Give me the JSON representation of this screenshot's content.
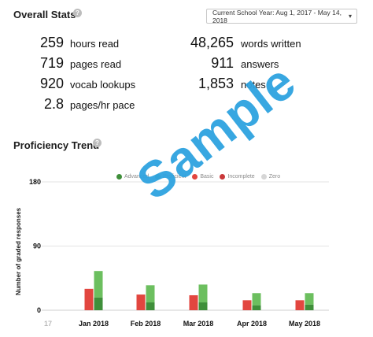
{
  "overall": {
    "title": "Overall Stats",
    "help": "?",
    "date_range": "Current School Year: Aug 1, 2017 - May 14, 2018",
    "stats_left": [
      {
        "value": "259",
        "label": "hours read"
      },
      {
        "value": "719",
        "label": "pages read"
      },
      {
        "value": "920",
        "label": "vocab lookups"
      },
      {
        "value": "2.8",
        "label": "pages/hr pace"
      }
    ],
    "stats_right": [
      {
        "value": "48,265",
        "label": "words written"
      },
      {
        "value": "911",
        "label": "answers"
      },
      {
        "value": "1,853",
        "label": "notes"
      }
    ]
  },
  "proficiency": {
    "title": "Proficiency Trend",
    "help": "?"
  },
  "watermark": "Sample",
  "colors": {
    "advanced": "#3f8f3a",
    "proficient": "#6cbf5f",
    "basic": "#e2463f",
    "incomplete": "#c9383a",
    "zero": "#d6d6d6",
    "watermark": "#2ea3e0"
  },
  "chart_data": {
    "type": "bar",
    "ylabel": "Number of graded responses",
    "ylim": [
      0,
      180
    ],
    "yticks": [
      "180",
      "90",
      "0"
    ],
    "x_partial_label": "17",
    "categories": [
      "Jan 2018",
      "Feb 2018",
      "Mar 2018",
      "Apr 2018",
      "May 2018"
    ],
    "legend": [
      {
        "name": "Advanced",
        "color": "#3f8f3a"
      },
      {
        "name": "Proficient",
        "color": "#6cbf5f"
      },
      {
        "name": "Basic",
        "color": "#e2463f"
      },
      {
        "name": "Incomplete",
        "color": "#c9383a"
      },
      {
        "name": "Zero",
        "color": "#d6d6d6"
      }
    ],
    "series": [
      {
        "name": "Basic",
        "values": [
          30,
          22,
          21,
          14,
          14
        ]
      },
      {
        "name": "Advanced",
        "values": [
          18,
          11,
          11,
          7,
          8
        ]
      },
      {
        "name": "Proficient",
        "values": [
          37,
          24,
          25,
          17,
          16
        ]
      }
    ]
  }
}
